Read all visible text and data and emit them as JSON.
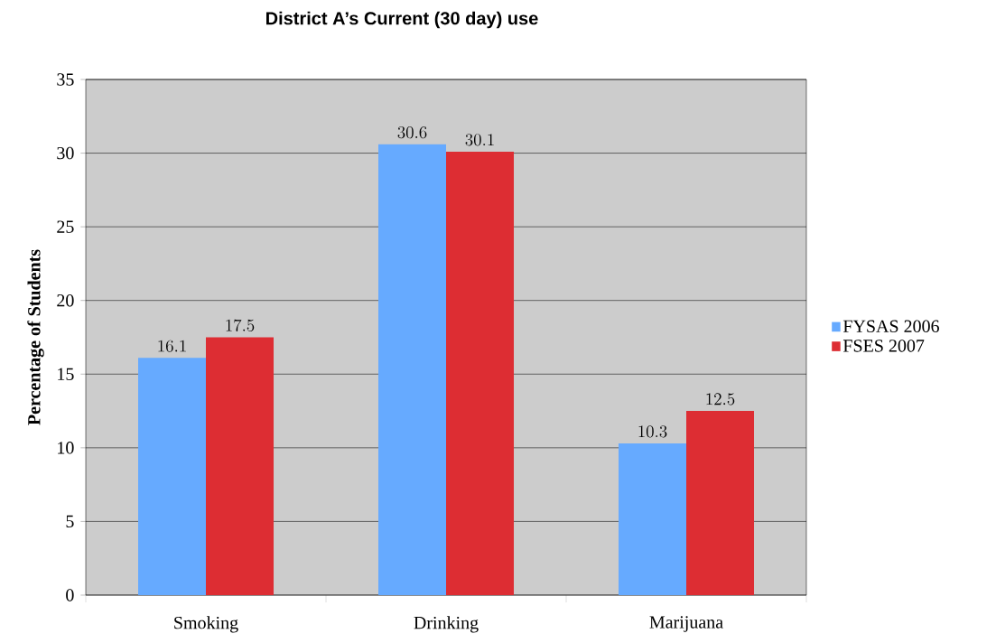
{
  "chart_data": {
    "type": "bar",
    "title": "District A’s Current (30 day) use",
    "ylabel": "Percentage of Students",
    "categories": [
      "Smoking",
      "Drinking",
      "Marijuana"
    ],
    "series": [
      {
        "name": "FYSAS 2006",
        "color": "#66aaff",
        "values": [
          16.1,
          30.6,
          10.3
        ]
      },
      {
        "name": "FSES 2007",
        "color": "#dd2d33",
        "values": [
          17.5,
          30.1,
          12.5
        ]
      }
    ],
    "ylim": [
      0,
      35
    ],
    "yticks": [
      0,
      5,
      10,
      15,
      20,
      25,
      30,
      35
    ],
    "grid": "y",
    "legend": "right",
    "data_labels": true
  }
}
